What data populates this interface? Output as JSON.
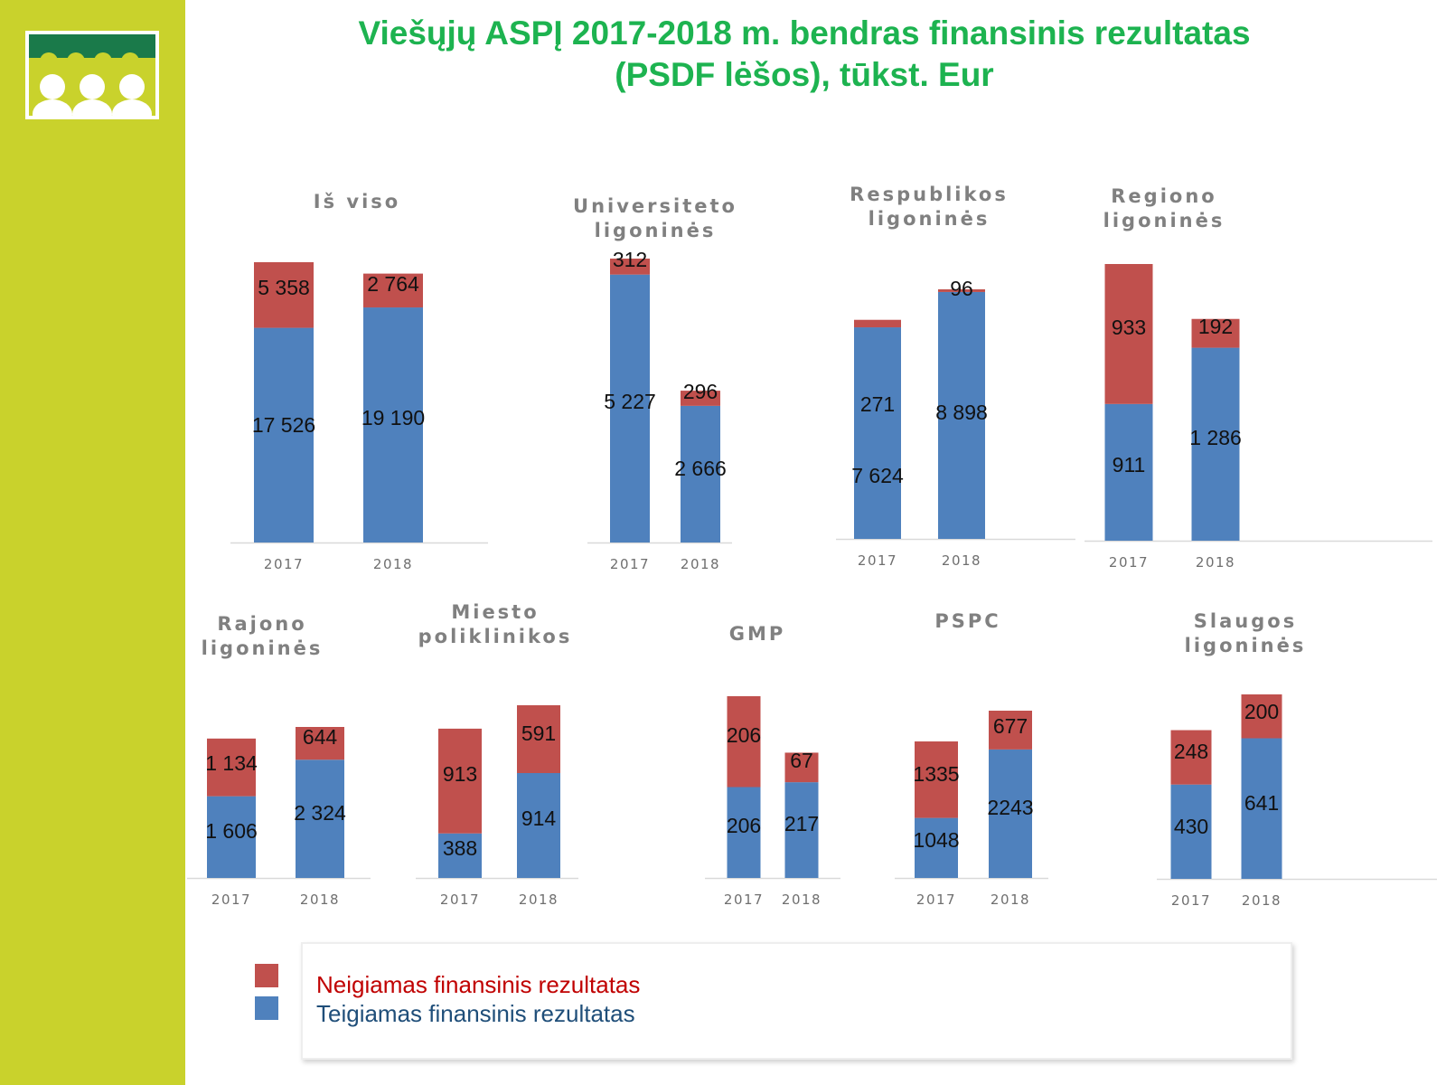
{
  "title": {
    "line1": "Viešųjų ASPĮ 2017-2018 m. bendras finansinis rezultatas",
    "line2": "(PSDF lėšos), tūkst. Eur"
  },
  "logo": {
    "icon": "people-group-logo-icon"
  },
  "legend": {
    "negative_label": "Neigiamas finansinis rezultatas",
    "positive_label": "Teigiamas finansinis rezultatas"
  },
  "colors": {
    "negative": "#c0504d",
    "positive": "#4f81bd",
    "title": "#1db350",
    "sidebar": "#c9d22c",
    "legend_negative_text": "#c00000",
    "legend_positive_text": "#1f4e79"
  },
  "chart_data": [
    {
      "type": "bar",
      "stacked": true,
      "title": [
        "Iš viso"
      ],
      "categories": [
        "2017",
        "2018"
      ],
      "series": [
        {
          "name": "Teigiamas finansinis rezultatas",
          "values": [
            17526,
            19190
          ],
          "labels": [
            "17 526",
            "19 190"
          ]
        },
        {
          "name": "Neigiamas finansinis rezultatas",
          "values": [
            5358,
            2764
          ],
          "labels": [
            "5 358",
            "2 764"
          ]
        }
      ]
    },
    {
      "type": "bar",
      "stacked": true,
      "title": [
        "Universiteto",
        "ligoninės"
      ],
      "categories": [
        "2017",
        "2018"
      ],
      "series": [
        {
          "name": "Teigiamas finansinis rezultatas",
          "values": [
            5227,
            2666
          ],
          "labels": [
            "5 227",
            "2 666"
          ]
        },
        {
          "name": "Neigiamas finansinis rezultatas",
          "values": [
            312,
            296
          ],
          "labels": [
            "312",
            "296"
          ]
        }
      ]
    },
    {
      "type": "bar",
      "stacked": true,
      "title": [
        "Respublikos",
        "ligoninės"
      ],
      "categories": [
        "2017",
        "2018"
      ],
      "series": [
        {
          "name": "Teigiamas finansinis rezultatas",
          "values": [
            7624,
            8898
          ],
          "labels": [
            "7 624",
            "8 898"
          ]
        },
        {
          "name": "Neigiamas finansinis rezultatas",
          "values": [
            271,
            96
          ],
          "labels": [
            "271",
            "96"
          ]
        }
      ]
    },
    {
      "type": "bar",
      "stacked": true,
      "title": [
        "Regiono",
        "ligoninės"
      ],
      "categories": [
        "2017",
        "2018"
      ],
      "series": [
        {
          "name": "Teigiamas finansinis rezultatas",
          "values": [
            911,
            1286
          ],
          "labels": [
            "911",
            "1 286"
          ]
        },
        {
          "name": "Neigiamas finansinis rezultatas",
          "values": [
            933,
            192
          ],
          "labels": [
            "933",
            "192"
          ]
        }
      ]
    },
    {
      "type": "bar",
      "stacked": true,
      "title": [
        "Rajono",
        "ligoninės"
      ],
      "categories": [
        "2017",
        "2018"
      ],
      "series": [
        {
          "name": "Teigiamas finansinis rezultatas",
          "values": [
            1606,
            2324
          ],
          "labels": [
            "1 606",
            "2 324"
          ]
        },
        {
          "name": "Neigiamas finansinis rezultatas",
          "values": [
            1134,
            644
          ],
          "labels": [
            "1 134",
            "644"
          ]
        }
      ]
    },
    {
      "type": "bar",
      "stacked": true,
      "title": [
        "Miesto",
        "poliklinikos"
      ],
      "categories": [
        "2017",
        "2018"
      ],
      "series": [
        {
          "name": "Teigiamas finansinis rezultatas",
          "values": [
            388,
            914
          ],
          "labels": [
            "388",
            "914"
          ]
        },
        {
          "name": "Neigiamas finansinis rezultatas",
          "values": [
            913,
            591
          ],
          "labels": [
            "913",
            "591"
          ]
        }
      ]
    },
    {
      "type": "bar",
      "stacked": true,
      "title": [
        "GMP"
      ],
      "categories": [
        "2017",
        "2018"
      ],
      "series": [
        {
          "name": "Teigiamas finansinis rezultatas",
          "values": [
            206,
            217
          ],
          "labels": [
            "206",
            "217"
          ]
        },
        {
          "name": "Neigiamas finansinis rezultatas",
          "values": [
            206,
            67
          ],
          "labels": [
            "206",
            "67"
          ]
        }
      ]
    },
    {
      "type": "bar",
      "stacked": true,
      "title": [
        "PSPC"
      ],
      "categories": [
        "2017",
        "2018"
      ],
      "series": [
        {
          "name": "Teigiamas finansinis rezultatas",
          "values": [
            1048,
            2243
          ],
          "labels": [
            "1048",
            "2243"
          ]
        },
        {
          "name": "Neigiamas finansinis rezultatas",
          "values": [
            1335,
            677
          ],
          "labels": [
            "1335",
            "677"
          ]
        }
      ]
    },
    {
      "type": "bar",
      "stacked": true,
      "title": [
        "Slaugos",
        "ligoninės"
      ],
      "categories": [
        "2017",
        "2018"
      ],
      "series": [
        {
          "name": "Teigiamas finansinis rezultatas",
          "values": [
            430,
            641
          ],
          "labels": [
            "430",
            "641"
          ]
        },
        {
          "name": "Neigiamas finansinis rezultatas",
          "values": [
            248,
            200
          ],
          "labels": [
            "248",
            "200"
          ]
        }
      ]
    }
  ]
}
